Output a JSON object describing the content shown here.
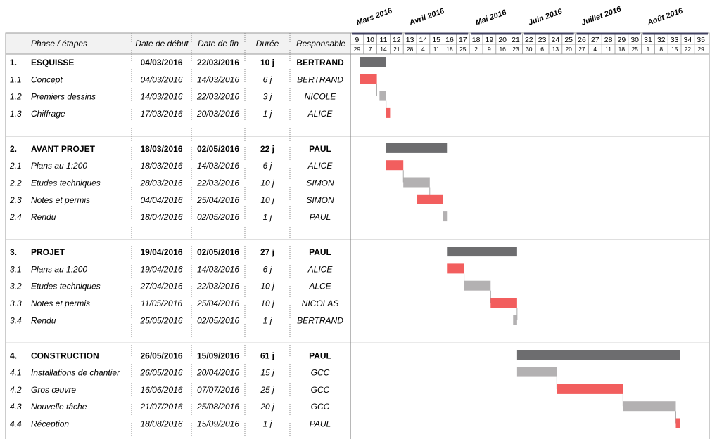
{
  "headers": {
    "phase": "Phase / étapes",
    "start": "Date de début",
    "end": "Date de fin",
    "duration": "Durée",
    "responsible": "Responsable"
  },
  "chart_data": {
    "type": "gantt",
    "months": [
      {
        "label": "Mars 2016",
        "week_start": 9
      },
      {
        "label": "Avril 2016",
        "week_start": 13
      },
      {
        "label": "Mai 2016",
        "week_start": 18
      },
      {
        "label": "Juin 2016",
        "week_start": 22
      },
      {
        "label": "Juillet 2016",
        "week_start": 26
      },
      {
        "label": "Août 2016",
        "week_start": 31
      }
    ],
    "weeks": [
      9,
      10,
      11,
      12,
      13,
      14,
      15,
      16,
      17,
      18,
      19,
      20,
      21,
      22,
      23,
      24,
      25,
      26,
      27,
      28,
      29,
      30,
      31,
      32,
      33,
      34,
      35
    ],
    "week_days": [
      29,
      7,
      14,
      21,
      28,
      4,
      11,
      18,
      25,
      2,
      9,
      16,
      23,
      30,
      6,
      13,
      20,
      27,
      4,
      11,
      18,
      25,
      1,
      8,
      15,
      22,
      29
    ],
    "groups": [
      {
        "num": "1.",
        "name": "ESQUISSE",
        "start": "04/03/2016",
        "end": "22/03/2016",
        "duration": "10 j",
        "resp": "BERTRAND",
        "bar": [
          9.7,
          11.7
        ],
        "tasks": [
          {
            "num": "1.1",
            "name": "Concept",
            "start": "04/03/2016",
            "end": "14/03/2016",
            "duration": "6 j",
            "resp": "BERTRAND",
            "bar": [
              9.7,
              11.0
            ],
            "kind": "red"
          },
          {
            "num": "1.2",
            "name": "Premiers dessins",
            "start": "14/03/2016",
            "end": "22/03/2016",
            "duration": "3 j",
            "resp": "NICOLE",
            "bar": [
              11.2,
              11.7
            ],
            "kind": "grey"
          },
          {
            "num": "1.3",
            "name": "Chiffrage",
            "start": "17/03/2016",
            "end": "20/03/2016",
            "duration": "1 j",
            "resp": "ALICE",
            "bar": [
              11.7,
              12.0
            ],
            "kind": "red"
          }
        ]
      },
      {
        "num": "2.",
        "name": "AVANT PROJET",
        "start": "18/03/2016",
        "end": "02/05/2016",
        "duration": "22 j",
        "resp": "PAUL",
        "bar": [
          11.7,
          16.3
        ],
        "tasks": [
          {
            "num": "2.1",
            "name": "Plans au 1:200",
            "start": "18/03/2016",
            "end": "14/03/2016",
            "duration": "6 j",
            "resp": "ALICE",
            "bar": [
              11.7,
              13.0
            ],
            "kind": "red"
          },
          {
            "num": "2.2",
            "name": "Etudes techniques",
            "start": "28/03/2016",
            "end": "22/03/2016",
            "duration": "10 j",
            "resp": "SIMON",
            "bar": [
              13.0,
              15.0
            ],
            "kind": "grey"
          },
          {
            "num": "2.3",
            "name": "Notes et permis",
            "start": "04/04/2016",
            "end": "25/04/2016",
            "duration": "10 j",
            "resp": "SIMON",
            "bar": [
              14.0,
              16.0
            ],
            "kind": "red"
          },
          {
            "num": "2.4",
            "name": "Rendu",
            "start": "18/04/2016",
            "end": "02/05/2016",
            "duration": "1 j",
            "resp": "PAUL",
            "bar": [
              16.0,
              16.3
            ],
            "kind": "grey"
          }
        ]
      },
      {
        "num": "3.",
        "name": "PROJET",
        "start": "19/04/2016",
        "end": "02/05/2016",
        "duration": "27 j",
        "resp": "PAUL",
        "bar": [
          16.3,
          21.6
        ],
        "tasks": [
          {
            "num": "3.1",
            "name": "Plans au 1:200",
            "start": "19/04/2016",
            "end": "14/03/2016",
            "duration": "6 j",
            "resp": "ALICE",
            "bar": [
              16.3,
              17.6
            ],
            "kind": "red"
          },
          {
            "num": "3.2",
            "name": "Etudes techniques",
            "start": "27/04/2016",
            "end": "22/03/2016",
            "duration": "10 j",
            "resp": "ALCE",
            "bar": [
              17.6,
              19.6
            ],
            "kind": "grey"
          },
          {
            "num": "3.3",
            "name": "Notes et permis",
            "start": "11/05/2016",
            "end": "25/04/2016",
            "duration": "10 j",
            "resp": "NICOLAS",
            "bar": [
              19.6,
              21.6
            ],
            "kind": "red"
          },
          {
            "num": "3.4",
            "name": "Rendu",
            "start": "25/05/2016",
            "end": "02/05/2016",
            "duration": "1 j",
            "resp": "BERTRAND",
            "bar": [
              21.3,
              21.6
            ],
            "kind": "grey"
          }
        ]
      },
      {
        "num": "4.",
        "name": "CONSTRUCTION",
        "start": "26/05/2016",
        "end": "15/09/2016",
        "duration": "61 j",
        "resp": "PAUL",
        "bar": [
          21.6,
          33.9
        ],
        "tasks": [
          {
            "num": "4.1",
            "name": "Installations de chantier",
            "start": "26/05/2016",
            "end": "20/04/2016",
            "duration": "15 j",
            "resp": "GCC",
            "bar": [
              21.6,
              24.6
            ],
            "kind": "grey"
          },
          {
            "num": "4.2",
            "name": "Gros œuvre",
            "start": "16/06/2016",
            "end": "07/07/2016",
            "duration": "25 j",
            "resp": "GCC",
            "bar": [
              24.6,
              29.6
            ],
            "kind": "red"
          },
          {
            "num": "4.3",
            "name": "Nouvelle tâche",
            "start": "21/07/2016",
            "end": "25/08/2016",
            "duration": "20 j",
            "resp": "GCC",
            "bar": [
              29.6,
              33.6
            ],
            "kind": "grey"
          },
          {
            "num": "4.4",
            "name": "Réception",
            "start": "18/08/2016",
            "end": "15/09/2016",
            "duration": "1 j",
            "resp": "PAUL",
            "bar": [
              33.6,
              33.9
            ],
            "kind": "red"
          }
        ]
      }
    ]
  },
  "colors": {
    "summary": "#6d6d6f",
    "red": "#f25e5e",
    "grey": "#b3b1b2",
    "grid": "#bdbdbd",
    "header_bg": "#f2f2f2",
    "month_line": "#404060"
  }
}
